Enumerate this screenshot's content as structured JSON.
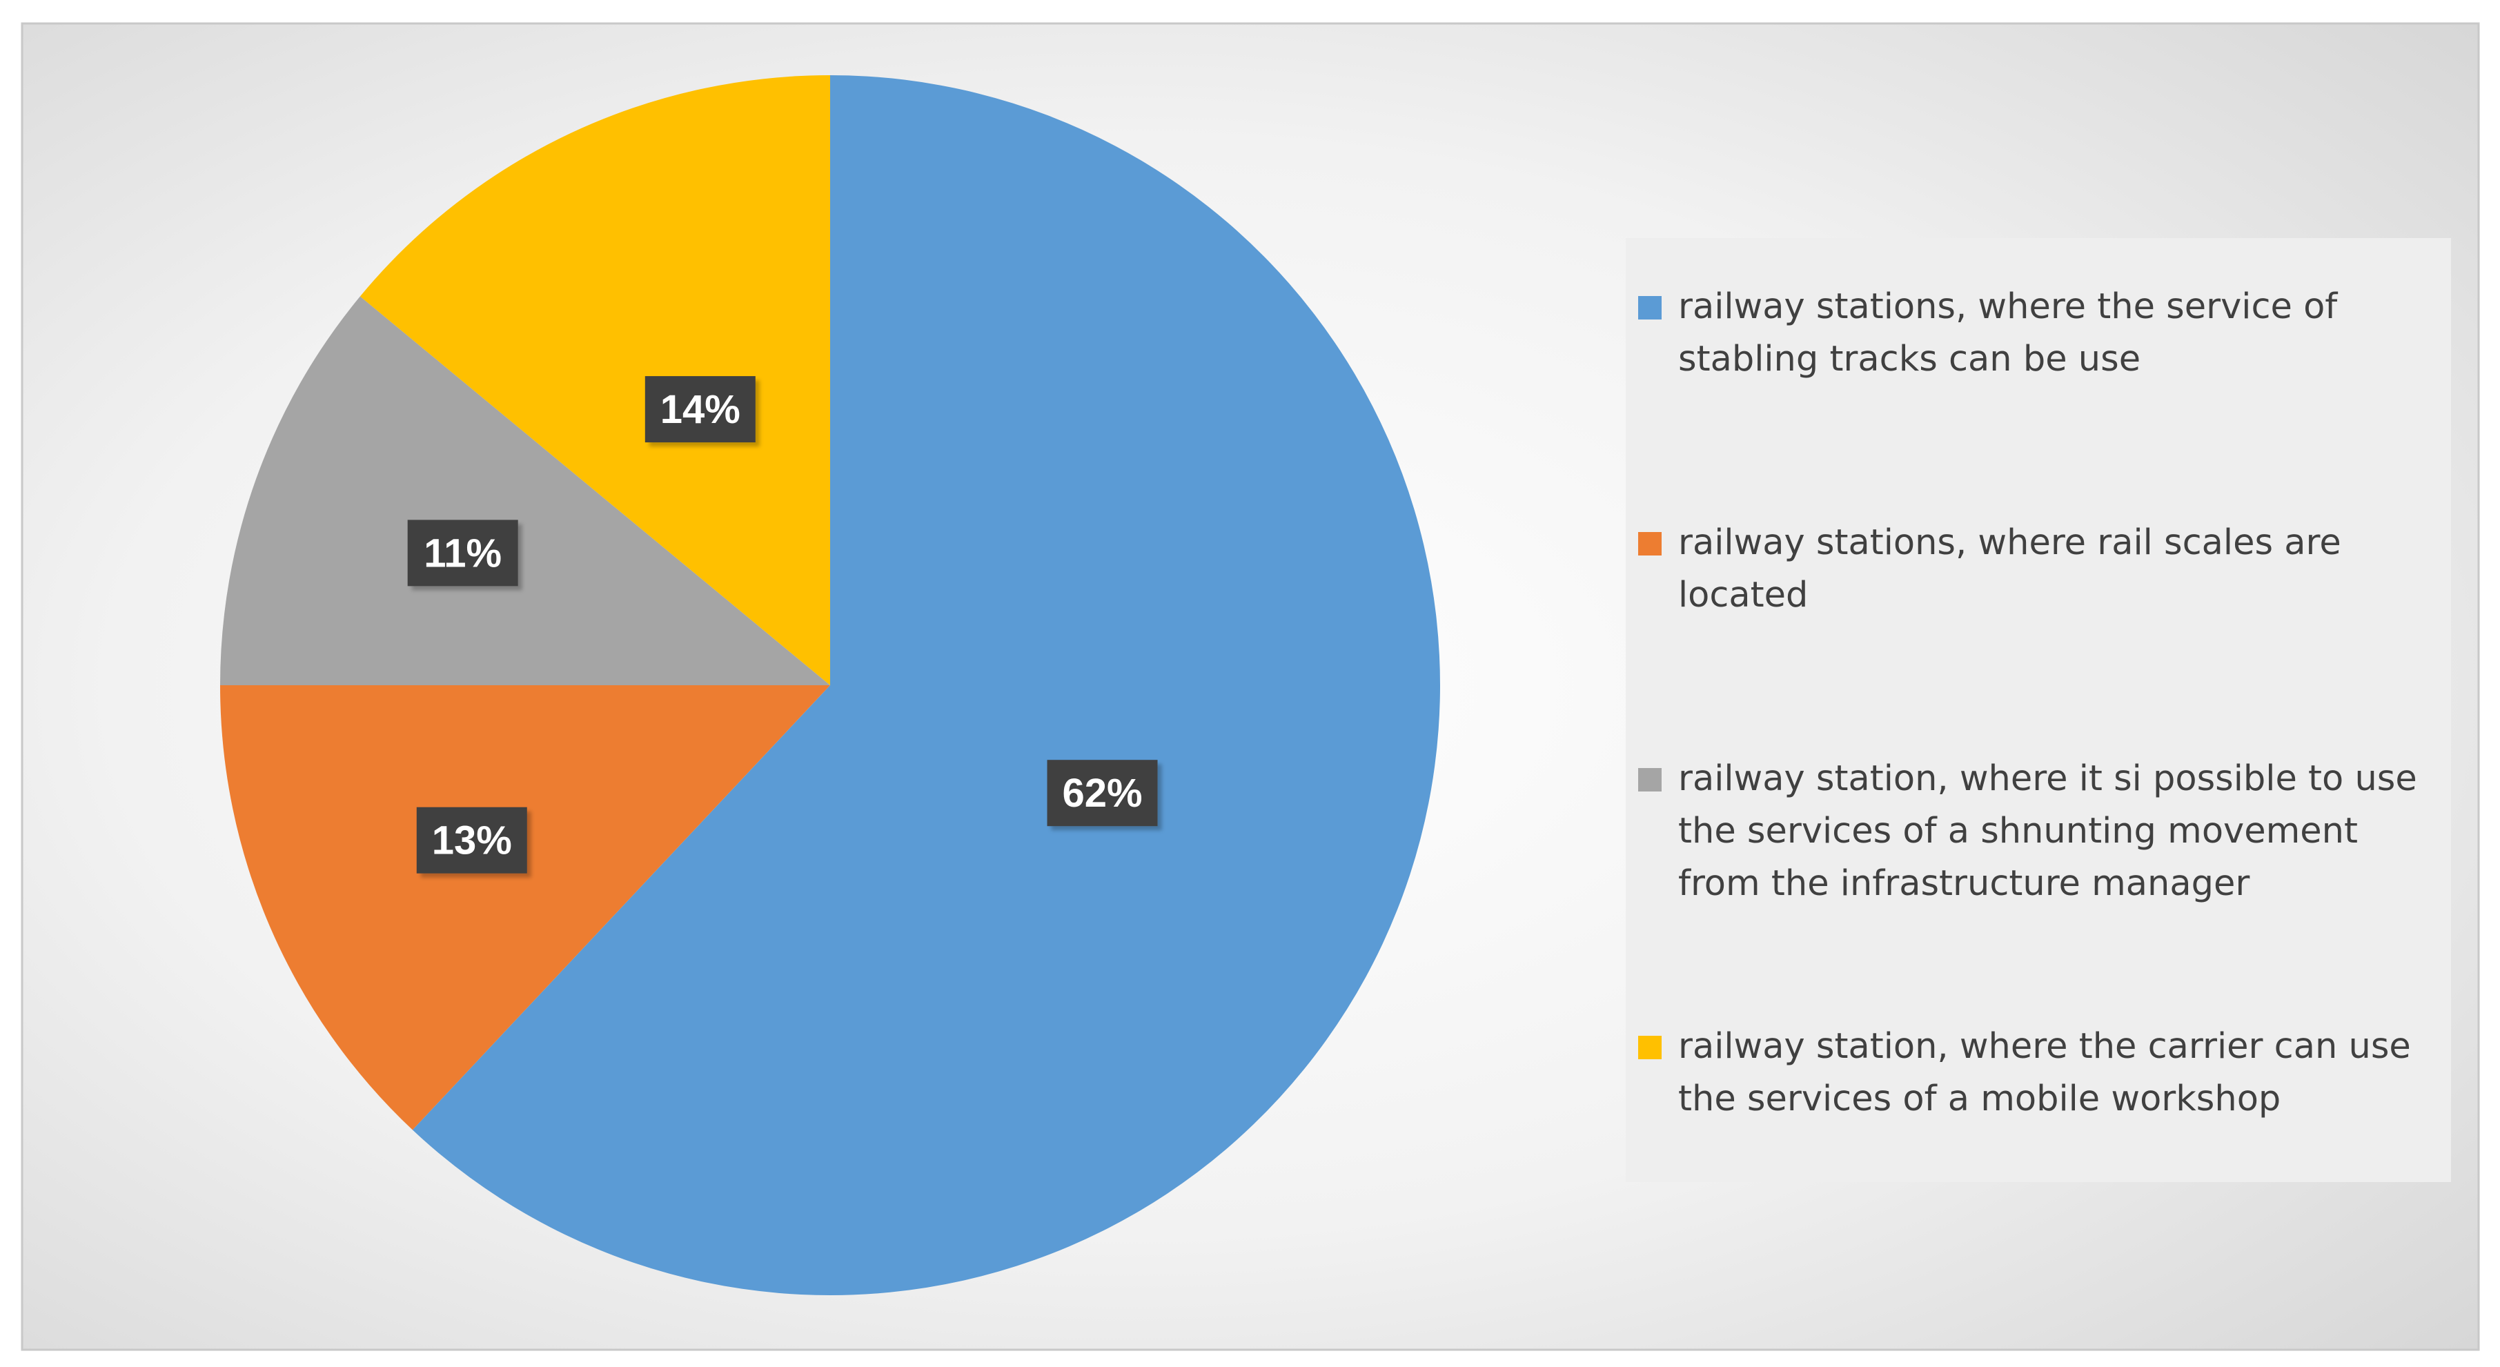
{
  "chart_data": {
    "type": "pie",
    "title": "",
    "slices": [
      {
        "label": "railway stations, where the service of stabling tracks can be use",
        "value": 62,
        "data_label": "62%",
        "color": "#5b9bd5"
      },
      {
        "label": "railway stations, where rail scales are located",
        "value": 13,
        "data_label": "13%",
        "color": "#ed7d31"
      },
      {
        "label": "railway station, where it si possible to use the services of a shnunting movement from the infrastructure manager",
        "value": 11,
        "data_label": "11%",
        "color": "#a5a5a5"
      },
      {
        "label": "railway station, where the carrier can use the services of a mobile workshop",
        "value": 14,
        "data_label": "14%",
        "color": "#ffc000"
      }
    ],
    "legend_placement": "right",
    "start_angle": "12 o'clock, clockwise"
  }
}
